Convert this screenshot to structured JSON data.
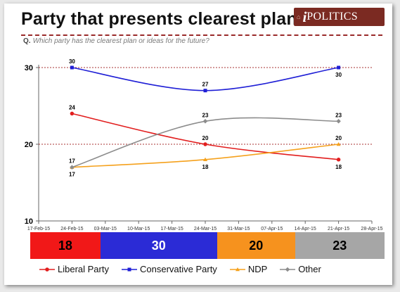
{
  "header": {
    "title": "Party that presents clearest plan",
    "question_prefix": "Q.",
    "question": "Which party has the clearest plan or ideas for the future?",
    "logo_i": "i",
    "logo_text": "POLITICS"
  },
  "chart_data": {
    "type": "line",
    "title": "Party that presents clearest plan",
    "subtitle": "Q. Which party has the clearest plan or ideas for the future?",
    "x": [
      "17-Feb-15",
      "24-Feb-15",
      "03-Mar-15",
      "10-Mar-15",
      "17-Mar-15",
      "24-Mar-15",
      "31-Mar-15",
      "07-Apr-15",
      "14-Apr-15",
      "21-Apr-15",
      "28-Apr-15"
    ],
    "ylim": [
      10,
      30
    ],
    "yticks": [
      10,
      20,
      30
    ],
    "reference_lines": [
      20,
      30
    ],
    "grid": false,
    "legend_position": "bottom",
    "series": [
      {
        "name": "Liberal Party",
        "color": "#e21e1e",
        "marker": "circle",
        "points": [
          [
            "24-Feb-15",
            24
          ],
          [
            "24-Mar-15",
            20
          ],
          [
            "21-Apr-15",
            18
          ]
        ],
        "labels": [
          "24",
          "20",
          "18"
        ],
        "label_side": [
          "above",
          "above",
          "below"
        ]
      },
      {
        "name": "Conservative Party",
        "color": "#1f1fd6",
        "marker": "square",
        "points": [
          [
            "24-Feb-15",
            30
          ],
          [
            "24-Mar-15",
            27
          ],
          [
            "21-Apr-15",
            30
          ]
        ],
        "labels": [
          "30",
          "27",
          "30"
        ],
        "label_side": [
          "above",
          "above",
          "below"
        ]
      },
      {
        "name": "NDP",
        "color": "#f5a11c",
        "marker": "triangle",
        "points": [
          [
            "24-Feb-15",
            17
          ],
          [
            "24-Mar-15",
            18
          ],
          [
            "21-Apr-15",
            20
          ]
        ],
        "labels": [
          "17",
          "18",
          "20"
        ],
        "label_side": [
          "below",
          "below",
          "above"
        ]
      },
      {
        "name": "Other",
        "color": "#8c8c8c",
        "marker": "diamond",
        "points": [
          [
            "24-Feb-15",
            17
          ],
          [
            "24-Mar-15",
            23
          ],
          [
            "21-Apr-15",
            23
          ]
        ],
        "labels": [
          "17",
          "23",
          "23"
        ],
        "label_side": [
          "above",
          "above",
          "above"
        ]
      }
    ]
  },
  "summary_bar": [
    {
      "value": "18",
      "share": 18,
      "color": "#f11818",
      "text_color": "#000000"
    },
    {
      "value": "30",
      "share": 30,
      "color": "#2b2bd6",
      "text_color": "#ffffff"
    },
    {
      "value": "20",
      "share": 20,
      "color": "#f6921e",
      "text_color": "#000000"
    },
    {
      "value": "23",
      "share": 23,
      "color": "#a6a6a6",
      "text_color": "#000000"
    }
  ],
  "legend": [
    {
      "label": "Liberal Party",
      "color": "#e21e1e",
      "marker": "circle"
    },
    {
      "label": "Conservative Party",
      "color": "#1f1fd6",
      "marker": "square"
    },
    {
      "label": "NDP",
      "color": "#f5a11c",
      "marker": "triangle"
    },
    {
      "label": "Other",
      "color": "#8c8c8c",
      "marker": "diamond"
    }
  ]
}
